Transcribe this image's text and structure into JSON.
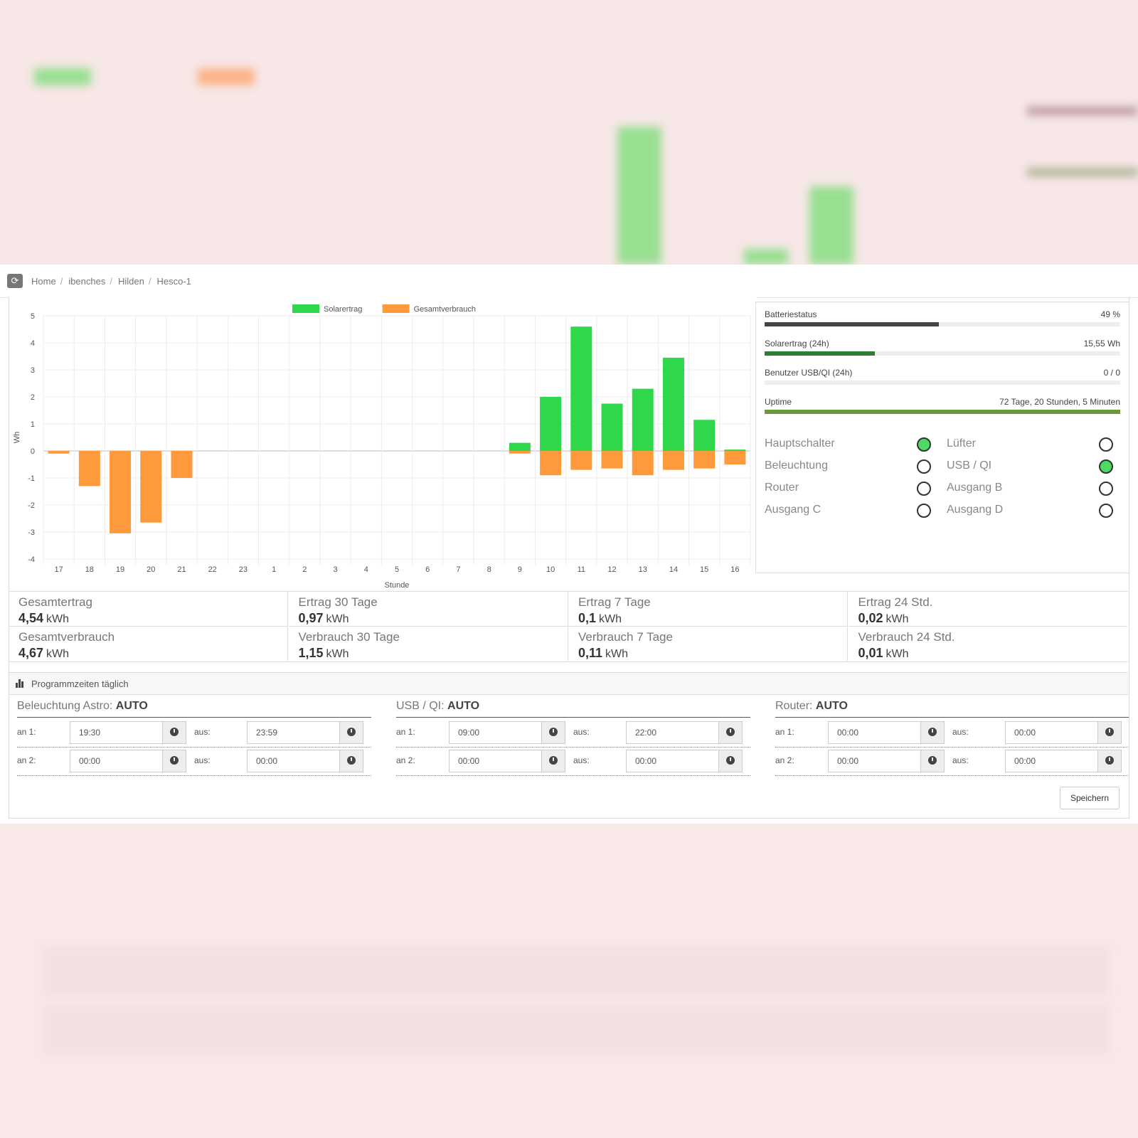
{
  "breadcrumb": {
    "items": [
      "Home",
      "ibenches",
      "Hilden",
      "Hesco-1"
    ]
  },
  "chart_data": {
    "type": "bar",
    "title": "",
    "xlabel": "Stunde",
    "ylabel": "Wh",
    "ylim": [
      -4,
      5
    ],
    "yticks": [
      5,
      4,
      3,
      2,
      1,
      0,
      -1,
      -2,
      -3,
      -4
    ],
    "categories": [
      "17",
      "18",
      "19",
      "20",
      "21",
      "22",
      "23",
      "1",
      "2",
      "3",
      "4",
      "5",
      "6",
      "7",
      "8",
      "9",
      "10",
      "11",
      "12",
      "13",
      "14",
      "15",
      "16"
    ],
    "legend": "top",
    "grid": true,
    "series": [
      {
        "name": "Solarertrag",
        "color": "#2ed84a",
        "values": [
          0,
          0,
          0,
          0,
          0,
          0,
          0,
          0,
          0,
          0,
          0,
          0,
          0,
          0,
          0,
          0.3,
          2.0,
          4.6,
          1.75,
          2.3,
          3.45,
          1.15,
          0.05
        ]
      },
      {
        "name": "Gesamtverbrauch",
        "color": "#ff9a3c",
        "values": [
          -0.1,
          -1.3,
          -3.05,
          -2.65,
          -1.0,
          0,
          0,
          0,
          0,
          0,
          0,
          0,
          0,
          0,
          0,
          -0.1,
          -0.9,
          -0.7,
          -0.65,
          -0.9,
          -0.7,
          -0.65,
          -0.5
        ]
      }
    ]
  },
  "status": {
    "rows": [
      {
        "label": "Batteriestatus",
        "value": "49 %",
        "fraction": 0.49,
        "color": "#444444"
      },
      {
        "label": "Solarertrag (24h)",
        "value": "15,55 Wh",
        "fraction": 0.31,
        "color": "#2e7d32"
      },
      {
        "label": "Benutzer USB/QI (24h)",
        "value": "0 / 0",
        "fraction": 0.0,
        "color": "#444444"
      },
      {
        "label": "Uptime",
        "value": "72 Tage, 20 Stunden, 5 Minuten",
        "fraction": 1.0,
        "color": "#6a9a3a"
      }
    ],
    "switches": [
      {
        "label": "Hauptschalter",
        "on": true
      },
      {
        "label": "Lüfter",
        "on": false
      },
      {
        "label": "Beleuchtung",
        "on": false
      },
      {
        "label": "USB / QI",
        "on": true
      },
      {
        "label": "Router",
        "on": false
      },
      {
        "label": "Ausgang B",
        "on": false
      },
      {
        "label": "Ausgang C",
        "on": false
      },
      {
        "label": "Ausgang D",
        "on": false
      }
    ]
  },
  "kpis": [
    {
      "label": "Gesamtertrag",
      "value": "4,54",
      "unit": "kWh"
    },
    {
      "label": "Ertrag 30 Tage",
      "value": "0,97",
      "unit": "kWh"
    },
    {
      "label": "Ertrag 7 Tage",
      "value": "0,1",
      "unit": "kWh"
    },
    {
      "label": "Ertrag 24 Std.",
      "value": "0,02",
      "unit": "kWh"
    },
    {
      "label": "Gesamtverbrauch",
      "value": "4,67",
      "unit": "kWh"
    },
    {
      "label": "Verbrauch 30 Tage",
      "value": "1,15",
      "unit": "kWh"
    },
    {
      "label": "Verbrauch 7 Tage",
      "value": "0,11",
      "unit": "kWh"
    },
    {
      "label": "Verbrauch 24 Std.",
      "value": "0,01",
      "unit": "kWh"
    }
  ],
  "program": {
    "header": "Programmzeiten täglich",
    "save_label": "Speichern",
    "columns": [
      {
        "title": "Beleuchtung Astro:",
        "mode": "AUTO",
        "rows": [
          {
            "on_label": "an 1:",
            "on": "19:30",
            "off_label": "aus:",
            "off": "23:59"
          },
          {
            "on_label": "an 2:",
            "on": "00:00",
            "off_label": "aus:",
            "off": "00:00"
          }
        ]
      },
      {
        "title": "USB / QI:",
        "mode": "AUTO",
        "rows": [
          {
            "on_label": "an 1:",
            "on": "09:00",
            "off_label": "aus:",
            "off": "22:00"
          },
          {
            "on_label": "an 2:",
            "on": "00:00",
            "off_label": "aus:",
            "off": "00:00"
          }
        ]
      },
      {
        "title": "Router:",
        "mode": "AUTO",
        "rows": [
          {
            "on_label": "an 1:",
            "on": "00:00",
            "off_label": "aus:",
            "off": "00:00"
          },
          {
            "on_label": "an 2:",
            "on": "00:00",
            "off_label": "aus:",
            "off": "00:00"
          }
        ]
      }
    ]
  }
}
